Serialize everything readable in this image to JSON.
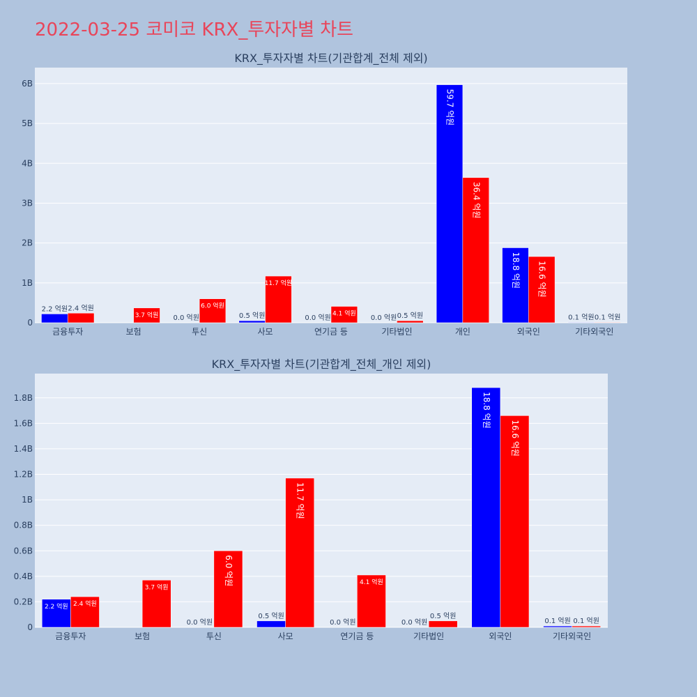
{
  "page_title": "2022-03-25 코미코 KRX_투자자별 차트",
  "colors": {
    "background": "#b0c4de",
    "plot_bg": "#e5ecf6",
    "title": "#e8455a",
    "series_buy": "#0000ff",
    "series_sell": "#ff0000"
  },
  "chart_data": [
    {
      "type": "bar",
      "title": "KRX_투자자별 차트(기관합계_전체 제외)",
      "xlabel": "",
      "ylabel": "",
      "categories": [
        "금융투자",
        "보험",
        "투신",
        "사모",
        "연기금 등",
        "기타법인",
        "개인",
        "외국인",
        "기타외국인"
      ],
      "ylim": [
        0,
        6.4
      ],
      "ytick_values": [
        0,
        1,
        2,
        3,
        4,
        5,
        6
      ],
      "ytick_labels": [
        "0",
        "1B",
        "2B",
        "3B",
        "4B",
        "5B",
        "6B"
      ],
      "grid": true,
      "series": [
        {
          "values": [
            0.22,
            0,
            0.0,
            0.05,
            0.0,
            0.0,
            5.97,
            1.88,
            0.01
          ],
          "labels": [
            "2.2 억원",
            "",
            "0.0 억원",
            "0.5 억원",
            "0.0 억원",
            "0.0 억원",
            "59.7 억원",
            "18.8 억원",
            "0.1 억원"
          ]
        },
        {
          "values": [
            0.24,
            0.37,
            0.6,
            1.17,
            0.41,
            0.05,
            3.64,
            1.66,
            0.01
          ],
          "labels": [
            "2.4 억원",
            "3.7 억원",
            "6.0 억원",
            "11.7 억원",
            "4.1 억원",
            "0.5 억원",
            "36.4 억원",
            "16.6 억원",
            "0.1 억원"
          ]
        }
      ]
    },
    {
      "type": "bar",
      "title": "KRX_투자자별 차트(기관합계_전체_개인 제외)",
      "xlabel": "",
      "ylabel": "",
      "categories": [
        "금융투자",
        "보험",
        "투신",
        "사모",
        "연기금 등",
        "기타법인",
        "외국인",
        "기타외국인"
      ],
      "ylim": [
        0,
        1.99
      ],
      "ytick_values": [
        0,
        0.2,
        0.4,
        0.6,
        0.8,
        1.0,
        1.2,
        1.4,
        1.6,
        1.8
      ],
      "ytick_labels": [
        "0",
        "0.2B",
        "0.4B",
        "0.6B",
        "0.8B",
        "1B",
        "1.2B",
        "1.4B",
        "1.6B",
        "1.8B"
      ],
      "grid": true,
      "series": [
        {
          "values": [
            0.22,
            0,
            0.0,
            0.05,
            0.0,
            0.0,
            1.88,
            0.01
          ],
          "labels": [
            "2.2 억원",
            "",
            "0.0 억원",
            "0.5 억원",
            "0.0 억원",
            "0.0 억원",
            "18.8 억원",
            "0.1 억원"
          ]
        },
        {
          "values": [
            0.24,
            0.37,
            0.6,
            1.17,
            0.41,
            0.05,
            1.66,
            0.01
          ],
          "labels": [
            "2.4 억원",
            "3.7 억원",
            "6.0 억원",
            "11.7 억원",
            "4.1 억원",
            "0.5 억원",
            "16.6 억원",
            "0.1 억원"
          ]
        }
      ]
    }
  ]
}
